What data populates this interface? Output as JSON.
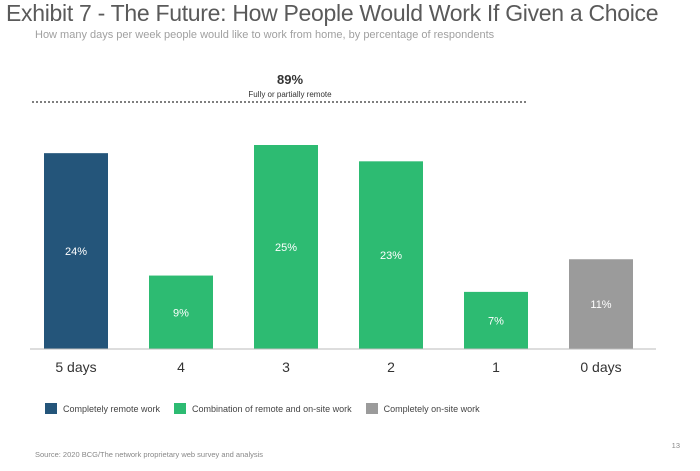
{
  "chart_data": {
    "type": "bar",
    "title": "Exhibit 7 - The Future: How People Would Work If Given a Choice",
    "subtitle": "How many days per week people would like to work from home, by percentage of respondents",
    "categories": [
      "5 days",
      "4",
      "3",
      "2",
      "1",
      "0 days"
    ],
    "values": [
      24,
      9,
      25,
      23,
      7,
      11
    ],
    "data_labels": [
      "24%",
      "9%",
      "25%",
      "23%",
      "7%",
      "11%"
    ],
    "bar_groups": [
      "remote",
      "combination",
      "combination",
      "combination",
      "combination",
      "onsite"
    ],
    "groups": {
      "remote": {
        "label": "Completely remote work",
        "color": "#24557a"
      },
      "combination": {
        "label": "Combination of remote and on-site work",
        "color": "#2dbb72"
      },
      "onsite": {
        "label": "Completely on-site work",
        "color": "#9b9b9b"
      }
    },
    "ylim": [
      0,
      25
    ],
    "grid": false,
    "legend_position": "bottom-left",
    "annotation": {
      "value": "89%",
      "label": "Fully or partially remote",
      "spans_categories": [
        "5 days",
        "4",
        "3",
        "2",
        "1"
      ]
    }
  },
  "footer": {
    "source": "Source: 2020 BCG/The network proprietary web survey and analysis",
    "page_number": "13"
  }
}
